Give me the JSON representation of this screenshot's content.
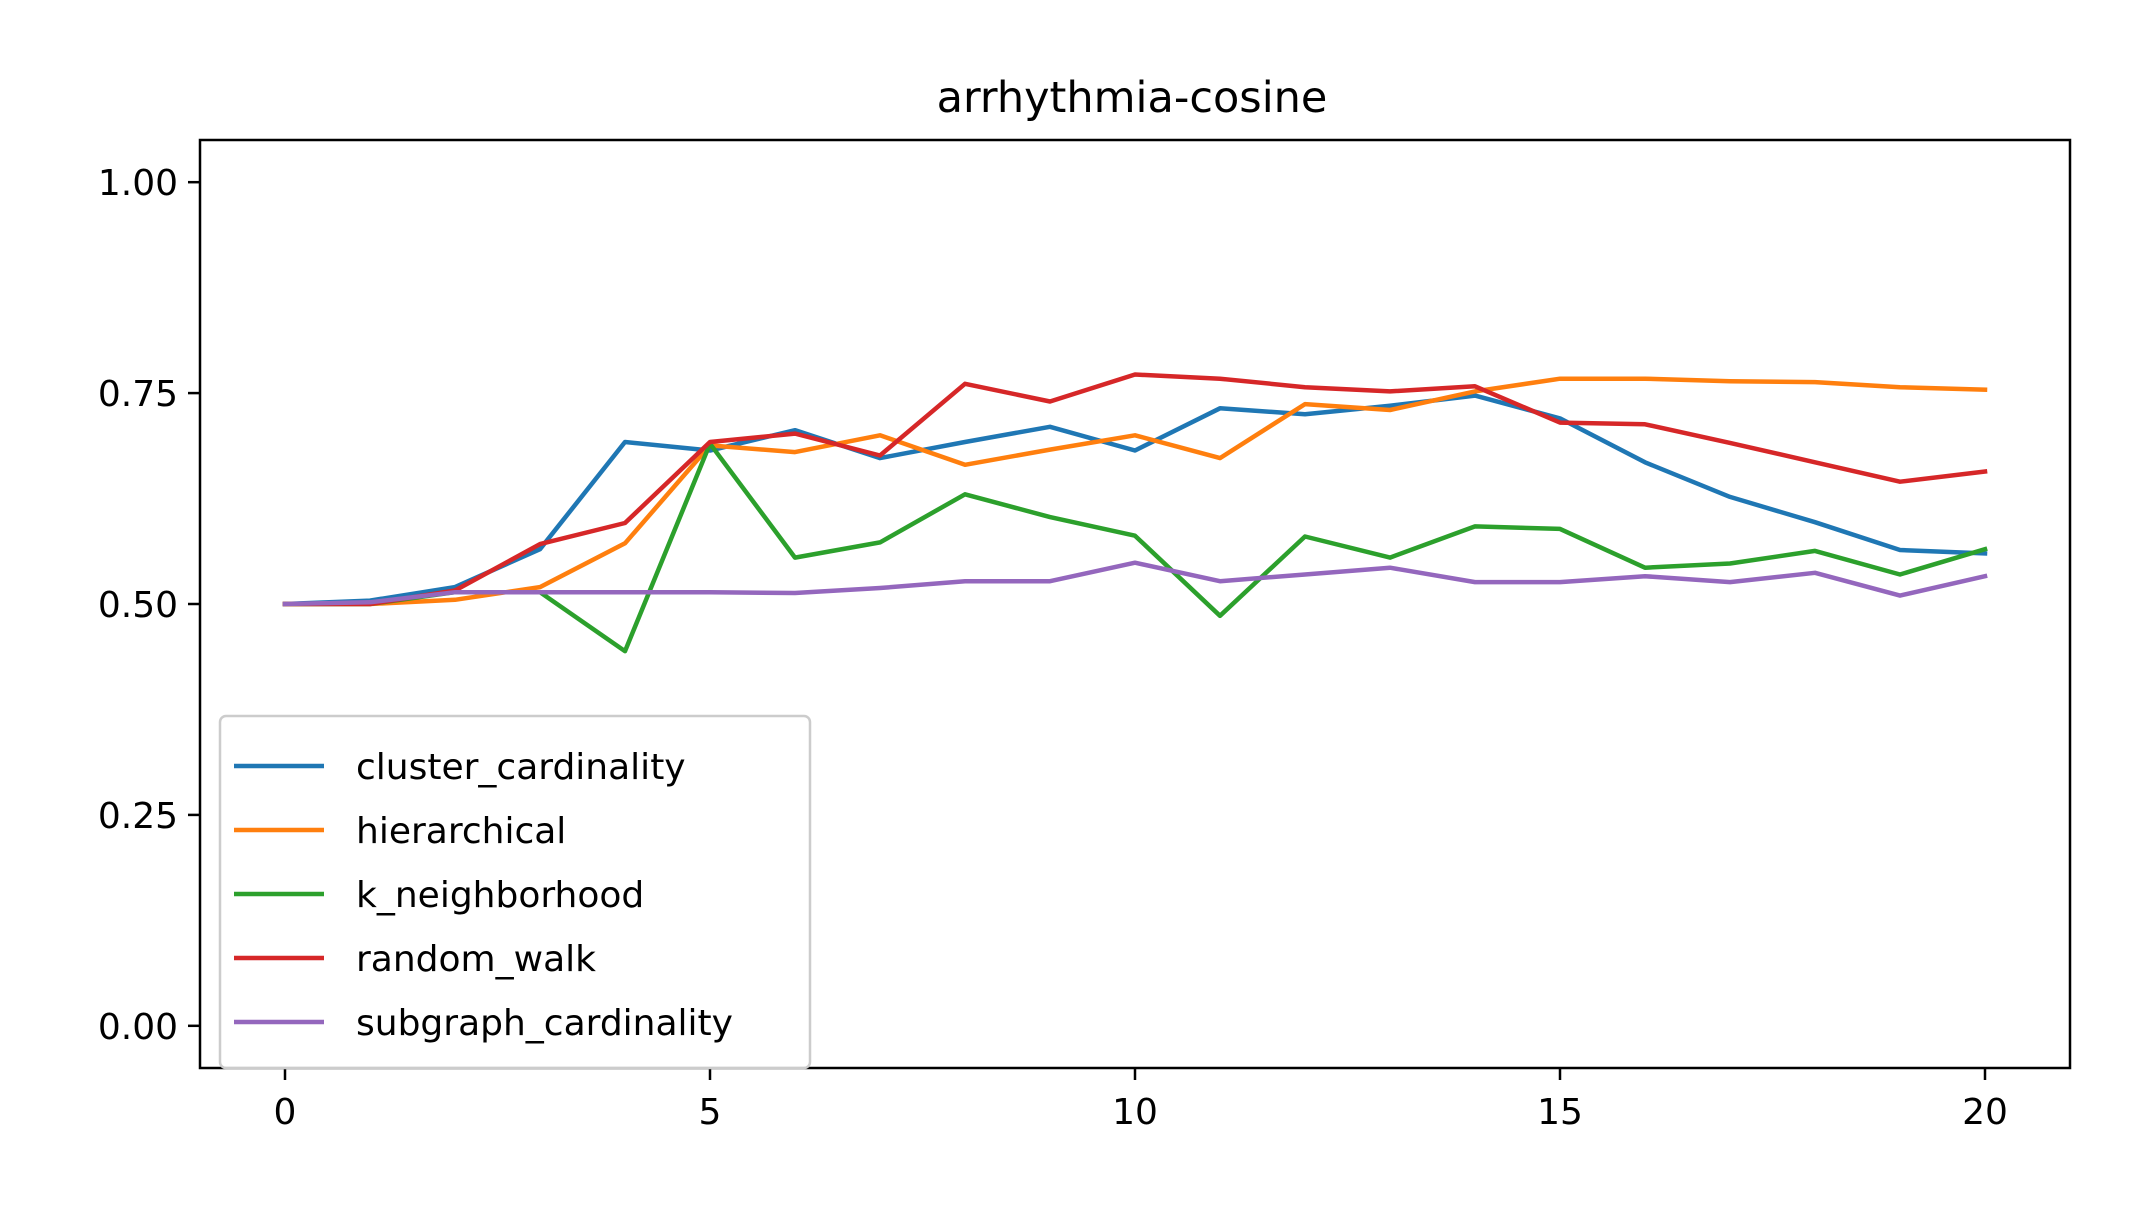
{
  "chart_data": {
    "type": "line",
    "title": "arrhythmia-cosine",
    "xlabel": "",
    "ylabel": "",
    "xlim": [
      -1,
      21
    ],
    "ylim": [
      -0.05,
      1.05
    ],
    "xticks": [
      0,
      5,
      10,
      15,
      20
    ],
    "xtick_labels": [
      "0",
      "5",
      "10",
      "15",
      "20"
    ],
    "yticks": [
      0.0,
      0.25,
      0.5,
      0.75,
      1.0
    ],
    "ytick_labels": [
      "0.00",
      "0.25",
      "0.50",
      "0.75",
      "1.00"
    ],
    "grid": false,
    "legend_position": "lower-left",
    "x": [
      0,
      1,
      2,
      3,
      4,
      5,
      6,
      7,
      8,
      9,
      10,
      11,
      12,
      13,
      14,
      15,
      16,
      17,
      18,
      19,
      20
    ],
    "series": [
      {
        "name": "cluster_cardinality",
        "color": "#1f77b4",
        "values": [
          0.5,
          0.504,
          0.52,
          0.565,
          0.692,
          0.682,
          0.706,
          0.673,
          0.692,
          0.71,
          0.682,
          0.732,
          0.725,
          0.735,
          0.747,
          0.72,
          0.668,
          0.627,
          0.597,
          0.564,
          0.56
        ]
      },
      {
        "name": "hierarchical",
        "color": "#ff7f0e",
        "values": [
          0.5,
          0.5,
          0.505,
          0.52,
          0.572,
          0.688,
          0.68,
          0.7,
          0.665,
          0.683,
          0.7,
          0.673,
          0.737,
          0.73,
          0.752,
          0.767,
          0.767,
          0.764,
          0.763,
          0.757,
          0.754
        ]
      },
      {
        "name": "k_neighborhood",
        "color": "#2ca02c",
        "values": [
          0.5,
          0.5,
          0.514,
          0.514,
          0.444,
          0.69,
          0.555,
          0.573,
          0.63,
          0.603,
          0.581,
          0.486,
          0.58,
          0.555,
          0.592,
          0.589,
          0.543,
          0.548,
          0.563,
          0.535,
          0.565
        ]
      },
      {
        "name": "random_walk",
        "color": "#d62728",
        "values": [
          0.5,
          0.5,
          0.516,
          0.571,
          0.596,
          0.692,
          0.702,
          0.676,
          0.761,
          0.74,
          0.772,
          0.767,
          0.757,
          0.752,
          0.758,
          0.715,
          0.713,
          0.691,
          0.668,
          0.645,
          0.657
        ]
      },
      {
        "name": "subgraph_cardinality",
        "color": "#9467bd",
        "values": [
          0.5,
          0.502,
          0.514,
          0.514,
          0.514,
          0.514,
          0.513,
          0.519,
          0.527,
          0.527,
          0.549,
          0.527,
          0.535,
          0.543,
          0.526,
          0.526,
          0.533,
          0.526,
          0.537,
          0.51,
          0.533
        ]
      }
    ]
  }
}
